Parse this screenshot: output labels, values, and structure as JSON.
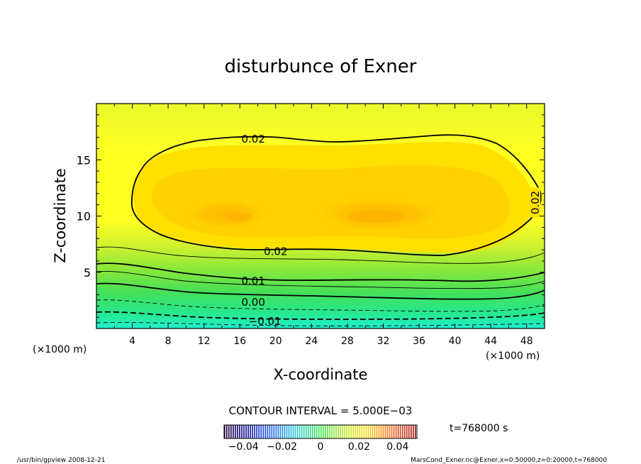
{
  "chart_data": {
    "type": "heatmap",
    "title": "disturbunce of Exner",
    "xlabel": "X-coordinate",
    "ylabel": "Z-coordinate",
    "x_unit_left": "(×1000 m)",
    "x_unit_right": "(×1000 m)",
    "xlim": [
      0,
      50
    ],
    "ylim": [
      0,
      20
    ],
    "x_ticks": [
      4,
      8,
      12,
      16,
      20,
      24,
      28,
      32,
      36,
      40,
      44,
      48
    ],
    "y_ticks": [
      5,
      10,
      15
    ],
    "contour_labels": [
      {
        "text": "0.02",
        "x": 17.5,
        "z": 16.9
      },
      {
        "text": "0.02",
        "x": 48.9,
        "z": 11.2
      },
      {
        "text": "0.02",
        "x": 20.0,
        "z": 6.9
      },
      {
        "text": "0.01",
        "x": 17.5,
        "z": 4.3
      },
      {
        "text": "0.00",
        "x": 17.5,
        "z": 2.4
      },
      {
        "text": "−0.01",
        "x": 18.8,
        "z": 0.7
      }
    ],
    "contour_interval": "CONTOUR INTERVAL = 5.000E−03",
    "colorbar": {
      "range": [
        -0.05,
        0.05
      ],
      "tick_labels": [
        "−0.04",
        "−0.02",
        "0",
        "0.02",
        "0.04"
      ],
      "tick_values": [
        -0.04,
        -0.02,
        0,
        0.02,
        0.04
      ]
    },
    "time_label": "t=768000 s"
  },
  "footer": {
    "left": "/usr/bin/gpview   2008-12-21",
    "right": "MarsCond_Exner.nc@Exner,x=0:50000,z=0:20000,t=768000"
  },
  "colors": {
    "low": "#22eecc",
    "mid": "#ffff22",
    "high": "#ffaa00",
    "contour": "#000000"
  }
}
